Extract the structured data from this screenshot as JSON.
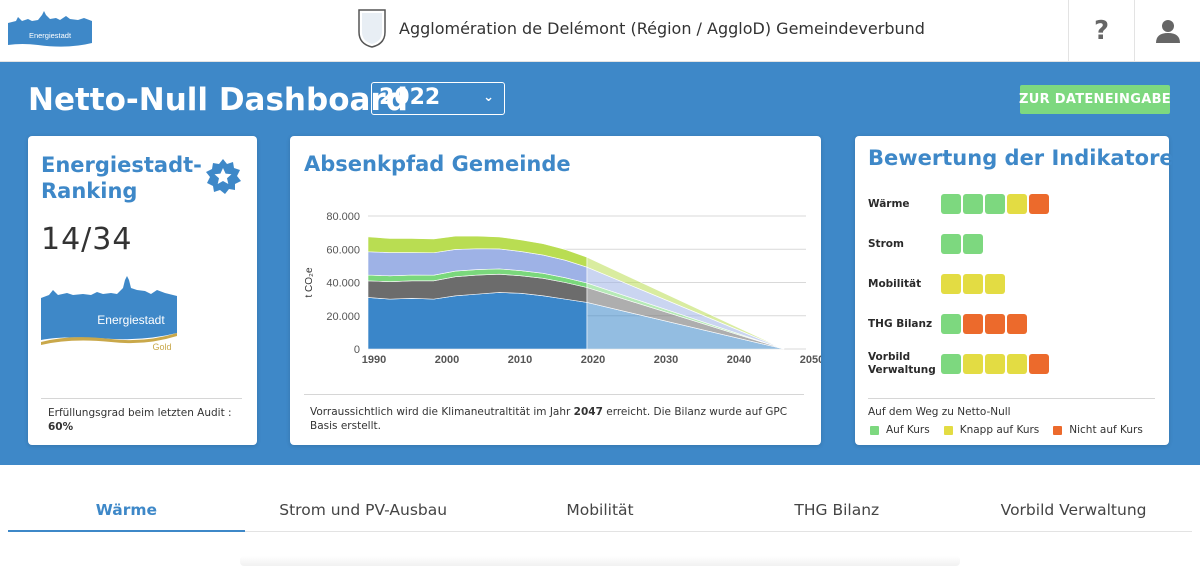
{
  "header": {
    "logo_text": "Energiestadt",
    "org_title": "Agglomération de Delémont (Région / AggloD) Gemeindeverbund",
    "help_label": "?",
    "help_icon": "help-icon",
    "user_icon": "user-icon"
  },
  "dashboard": {
    "title": "Netto-Null Dashboard",
    "year": "2022",
    "entry_button": "ZUR DATENEINGABE"
  },
  "ranking_card": {
    "title": "Energiestadt-Ranking",
    "rank": "14/34",
    "logo_text": "Energiestadt",
    "logo_sub": "Gold",
    "audit_label": "Erfüllungsgrad beim letzten Audit :",
    "audit_value": "60%"
  },
  "chart_card": {
    "title": "Absenkpfad Gemeinde",
    "note_pre": "Vorraussichtlich wird die Klimaneutraltität im Jahr",
    "note_year": "2047",
    "note_post": "erreicht. Die Bilanz wurde auf GPC Basis erstellt."
  },
  "chart_data": {
    "type": "area",
    "title": "Absenkpfad Gemeinde",
    "ylabel": "t CO₂e",
    "xlabel": "",
    "ylim": [
      0,
      80000
    ],
    "xlim": [
      1990,
      2050
    ],
    "y_ticks": [
      "0",
      "20.000",
      "40.000",
      "60.000",
      "80.000"
    ],
    "y_tick_values": [
      0,
      20000,
      40000,
      60000,
      80000
    ],
    "x_ticks": [
      "1990",
      "2000",
      "2010",
      "2020",
      "2030",
      "2040",
      "2050"
    ],
    "x_tick_values": [
      1990,
      2000,
      2010,
      2020,
      2030,
      2040,
      2050
    ],
    "grid": true,
    "stacked": true,
    "x": [
      1990,
      1993,
      1996,
      1999,
      2002,
      2005,
      2008,
      2011,
      2014,
      2017,
      2020
    ],
    "series": [
      {
        "color": "#3a86c9",
        "values": [
          31000,
          30000,
          30500,
          30000,
          32000,
          33000,
          34000,
          33500,
          32000,
          30000,
          28000
        ]
      },
      {
        "color": "#6c6c6c",
        "values": [
          10000,
          10500,
          10500,
          11000,
          11500,
          11500,
          11000,
          10500,
          10500,
          10000,
          9000
        ]
      },
      {
        "color": "#7ad87c",
        "values": [
          3500,
          3500,
          3500,
          3400,
          3400,
          3300,
          3200,
          3100,
          3000,
          2900,
          2700
        ]
      },
      {
        "color": "#9eb2e6",
        "values": [
          14000,
          14000,
          13500,
          13500,
          13000,
          12500,
          12000,
          11500,
          11000,
          10500,
          9500
        ]
      },
      {
        "color": "#b9dd52",
        "values": [
          9000,
          8500,
          8500,
          8300,
          8000,
          7600,
          7200,
          7000,
          6800,
          6500,
          6000
        ]
      }
    ],
    "projection": {
      "x": [
        2020,
        2047
      ],
      "style": "linear decline to zero",
      "fill": "lighter shades of the series colors"
    }
  },
  "indicators_card": {
    "title": "Bewertung der Indikatoren",
    "rows": [
      {
        "label": "Wärme",
        "ratings": [
          "green",
          "green",
          "green",
          "yellow",
          "orange"
        ]
      },
      {
        "label": "Strom",
        "ratings": [
          "green",
          "green"
        ]
      },
      {
        "label": "Mobilität",
        "ratings": [
          "yellow",
          "yellow",
          "yellow"
        ]
      },
      {
        "label": "THG Bilanz",
        "ratings": [
          "green",
          "orange",
          "orange",
          "orange"
        ]
      },
      {
        "label": "Vorbild Verwaltung",
        "ratings": [
          "green",
          "yellow",
          "yellow",
          "yellow",
          "orange"
        ]
      }
    ],
    "legend_title": "Auf dem Weg zu Netto-Null",
    "legend": [
      {
        "key": "green",
        "label": "Auf Kurs"
      },
      {
        "key": "yellow",
        "label": "Knapp auf Kurs"
      },
      {
        "key": "orange",
        "label": "Nicht auf Kurs"
      }
    ],
    "colors": {
      "green": "#7dd87f",
      "yellow": "#e3dc43",
      "orange": "#ec6a2c"
    }
  },
  "tabs": [
    {
      "label": "Wärme",
      "active": true
    },
    {
      "label": "Strom und PV-Ausbau",
      "active": false
    },
    {
      "label": "Mobilität",
      "active": false
    },
    {
      "label": "THG Bilanz",
      "active": false
    },
    {
      "label": "Vorbild Verwaltung",
      "active": false
    }
  ],
  "theme": {
    "primary": "#3e88c8",
    "accent_green": "#7dd87f"
  }
}
